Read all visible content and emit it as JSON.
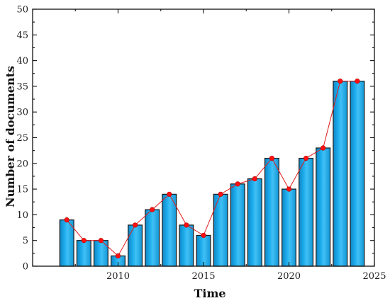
{
  "chart_data": {
    "type": "bar",
    "xlabel": "Time",
    "ylabel": "Number of documents",
    "x": [
      2007,
      2008,
      2009,
      2010,
      2011,
      2012,
      2013,
      2014,
      2015,
      2016,
      2017,
      2018,
      2019,
      2020,
      2021,
      2022,
      2023,
      2024
    ],
    "values": [
      9,
      5,
      5,
      2,
      8,
      11,
      14,
      8,
      6,
      14,
      16,
      17,
      21,
      15,
      21,
      23,
      36,
      36
    ],
    "xlim": [
      2005,
      2025
    ],
    "ylim": [
      0,
      50
    ],
    "x_ticks": [
      "2010",
      "2015",
      "2020",
      "2025"
    ],
    "y_ticks": [
      "0",
      "5",
      "10",
      "15",
      "20",
      "25",
      "30",
      "35",
      "40",
      "45",
      "50"
    ],
    "overlay": "line with markers",
    "grid": false,
    "legend": "none",
    "colors": {
      "bar_fill": "#1aa6e8",
      "bar_stroke": "#1a1a1a",
      "line": "#e21a1a",
      "marker": "#ff1010"
    }
  }
}
